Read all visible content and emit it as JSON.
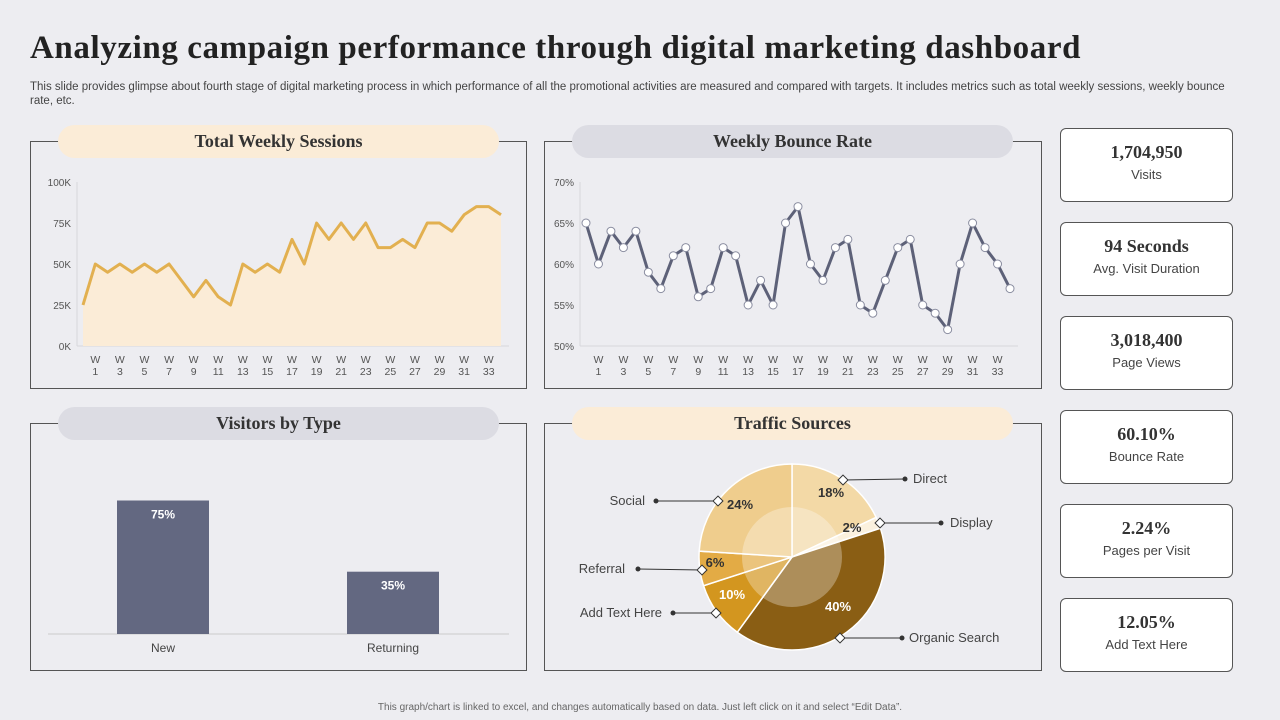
{
  "title": "Analyzing campaign performance through digital marketing dashboard",
  "description": "This slide provides glimpse about fourth stage of digital marketing process in which performance of all the promotional activities are measured and compared with targets. It includes metrics such as total weekly sessions, weekly bounce rate, etc.",
  "footer": "This graph/chart is linked to excel, and changes automatically based on data. Just left click on it and select “Edit Data”.",
  "kpis": [
    {
      "value": "1,704,950",
      "label": "Visits"
    },
    {
      "value": "94 Seconds",
      "label": "Avg. Visit Duration"
    },
    {
      "value": "3,018,400",
      "label": "Page Views"
    },
    {
      "value": "60.10%",
      "label": "Bounce Rate"
    },
    {
      "value": "2.24%",
      "label": "Pages per Visit"
    },
    {
      "value": "12.05%",
      "label": "Add Text Here"
    }
  ],
  "chart_data": [
    {
      "type": "area",
      "title": "Total Weekly Sessions",
      "ylim": [
        0,
        100000
      ],
      "yticks": [
        "0K",
        "25K",
        "50K",
        "75K",
        "100K"
      ],
      "xtick_labels": [
        "W 1",
        "W 3",
        "W 5",
        "W 7",
        "W 9",
        "W 11",
        "W 13",
        "W 15",
        "W 17",
        "W 19",
        "W 21",
        "W 23",
        "W 25",
        "W 27",
        "W 29",
        "W 31",
        "W 33"
      ],
      "values": [
        25000,
        50000,
        45000,
        50000,
        45000,
        50000,
        45000,
        50000,
        40000,
        30000,
        40000,
        30000,
        25000,
        50000,
        45000,
        50000,
        45000,
        65000,
        50000,
        75000,
        65000,
        75000,
        65000,
        75000,
        60000,
        60000,
        65000,
        60000,
        75000,
        75000,
        70000,
        80000,
        85000,
        85000,
        80000
      ],
      "color": "#e2b050"
    },
    {
      "type": "line",
      "title": "Weekly Bounce Rate",
      "ylim": [
        50,
        70
      ],
      "yticks": [
        "50%",
        "55%",
        "60%",
        "65%",
        "70%"
      ],
      "xtick_labels": [
        "W 1",
        "W 3",
        "W 5",
        "W 7",
        "W 9",
        "W 11",
        "W 13",
        "W 15",
        "W 17",
        "W 19",
        "W 21",
        "W 23",
        "W 25",
        "W 27",
        "W 29",
        "W 31",
        "W 33"
      ],
      "values": [
        65,
        60,
        64,
        62,
        64,
        59,
        57,
        61,
        62,
        56,
        57,
        62,
        61,
        55,
        58,
        55,
        65,
        67,
        60,
        58,
        62,
        63,
        55,
        54,
        58,
        62,
        63,
        55,
        54,
        52,
        60,
        65,
        62,
        60,
        57
      ],
      "color": "#5d6178"
    },
    {
      "type": "bar",
      "title": "Visitors by Type",
      "categories": [
        "New",
        "Returning"
      ],
      "values": [
        75,
        35
      ],
      "labels": [
        "75%",
        "35%"
      ],
      "ylim": [
        0,
        100
      ],
      "color": "#636881"
    },
    {
      "type": "pie",
      "title": "Traffic Sources",
      "slices": [
        {
          "name": "Direct",
          "value": 18,
          "label": "18%",
          "color": "#f3d9a6"
        },
        {
          "name": "Display",
          "value": 2,
          "label": "2%",
          "color": "#fbf1de"
        },
        {
          "name": "Organic Search",
          "value": 40,
          "label": "40%",
          "color": "#8a5e14"
        },
        {
          "name": "Add Text Here",
          "value": 10,
          "label": "10%",
          "color": "#d3961f"
        },
        {
          "name": "Referral",
          "value": 6,
          "label": "6%",
          "color": "#e3ab45"
        },
        {
          "name": "Social",
          "value": 24,
          "label": "24%",
          "color": "#efcd8d"
        }
      ]
    }
  ]
}
